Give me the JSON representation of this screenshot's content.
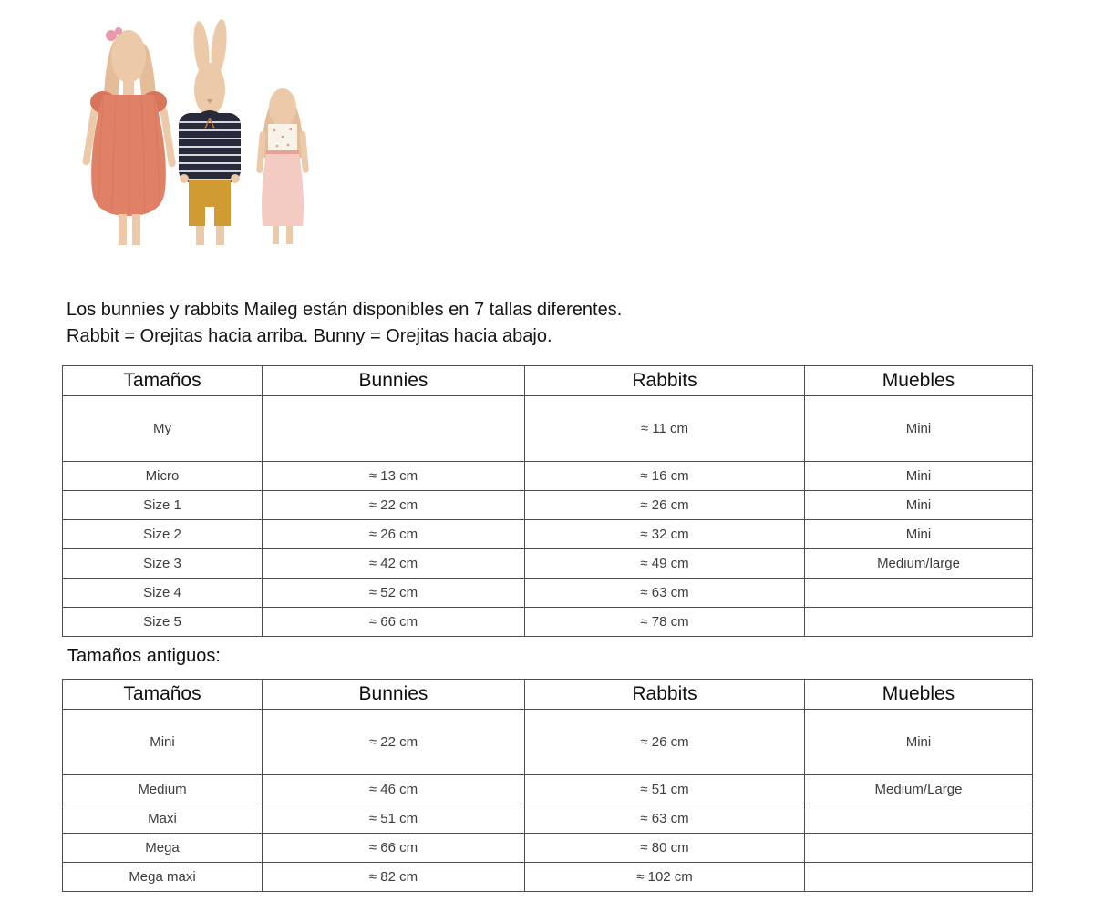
{
  "hero": {
    "description": "Three Maileg bunny and rabbit fabric dolls in descending sizes",
    "colors": {
      "skin": "#ecc9a8",
      "skin_shade": "#e4bd98",
      "dress_coral": "#e08066",
      "dress_coral_dark": "#d7755c",
      "sweater_navy": "#262a3a",
      "stripe_white": "#d6d8dc",
      "shorts_mustard": "#d09b33",
      "skirt_pink": "#f4cbc3",
      "top_cream": "#f8f3e8",
      "flower_pink": "#e897ad"
    }
  },
  "intro": {
    "line1": "Los bunnies y rabbits Maileg están disponibles en 7 tallas diferentes.",
    "line2": "Rabbit = Orejitas hacia arriba. Bunny = Orejitas hacia abajo."
  },
  "size_table": {
    "headers": [
      "Tamaños",
      "Bunnies",
      "Rabbits",
      "Muebles"
    ],
    "rows": [
      [
        "My",
        "",
        "≈ 11 cm",
        "Mini"
      ],
      [
        "Micro",
        "≈ 13 cm",
        "≈ 16 cm",
        "Mini"
      ],
      [
        "Size 1",
        "≈ 22 cm",
        "≈ 26 cm",
        "Mini"
      ],
      [
        "Size 2",
        "≈ 26 cm",
        "≈ 32 cm",
        "Mini"
      ],
      [
        "Size 3",
        "≈ 42 cm",
        "≈ 49 cm",
        "Medium/large"
      ],
      [
        "Size 4",
        "≈ 52 cm",
        "≈ 63 cm",
        ""
      ],
      [
        "Size 5",
        "≈ 66 cm",
        "≈ 78 cm",
        ""
      ]
    ]
  },
  "old_sizes_heading": "Tamaños antiguos:",
  "old_size_table": {
    "headers": [
      "Tamaños",
      "Bunnies",
      "Rabbits",
      "Muebles"
    ],
    "rows": [
      [
        "Mini",
        "≈ 22 cm",
        "≈ 26 cm",
        "Mini"
      ],
      [
        "Medium",
        "≈ 46 cm",
        "≈ 51 cm",
        "Medium/Large"
      ],
      [
        "Maxi",
        "≈ 51 cm",
        "≈ 63 cm",
        ""
      ],
      [
        "Mega",
        "≈ 66 cm",
        "≈ 80 cm",
        ""
      ],
      [
        "Mega maxi",
        "≈ 82 cm",
        "≈ 102 cm",
        ""
      ]
    ]
  }
}
